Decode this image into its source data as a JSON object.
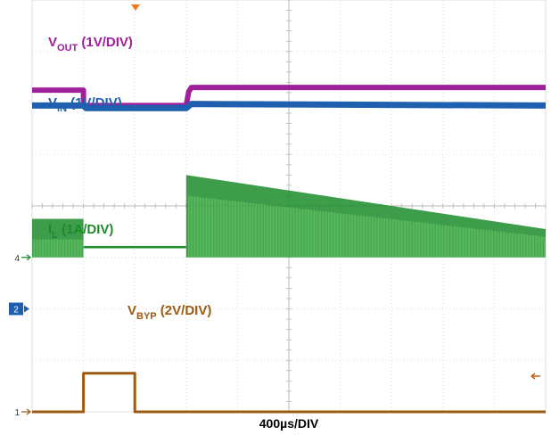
{
  "chart_data": {
    "type": "line",
    "title": "",
    "grid": true,
    "x_divisions": 10,
    "y_divisions": 8,
    "time_scale": "400µs/DIV",
    "trigger_position": "center-left (x≈1.0 div)",
    "channel_markers": [
      {
        "label": "4",
        "level_div": 3.0
      },
      {
        "label": "2",
        "level_div": 2.0
      },
      {
        "label": "1",
        "level_div": 0.0
      }
    ],
    "series": [
      {
        "name": "VOUT (1V/DIV)",
        "label": {
          "main": "V",
          "sub": "OUT",
          "rest": " (1V/DIV)"
        },
        "color": "#a0209c",
        "x": [
          0,
          1.0,
          1.0,
          3.0,
          3.05,
          3.1,
          10
        ],
        "y": [
          6.25,
          6.25,
          5.95,
          5.95,
          6.22,
          6.3,
          6.3
        ]
      },
      {
        "name": "VIN (1V/DIV)",
        "label": {
          "main": "V",
          "sub": "IN",
          "rest": " (1V/DIV)"
        },
        "color": "#1f5fb0",
        "x": [
          0,
          1.0,
          1.05,
          3.0,
          3.1,
          10
        ],
        "y": [
          5.95,
          5.95,
          5.9,
          5.9,
          5.98,
          5.95
        ]
      },
      {
        "name": "IL (1A/DIV)",
        "label": {
          "main": "I",
          "sub": "L",
          "rest": " (1A/DIV)"
        },
        "color": "#1c8c2a",
        "x": [
          0,
          1.0,
          1.0,
          3.0,
          3.0,
          10
        ],
        "y_high": [
          3.75,
          3.75,
          3.2,
          3.2,
          4.6,
          3.55
        ],
        "y_low": [
          3.0,
          3.0,
          3.2,
          3.2,
          3.0,
          3.0
        ]
      },
      {
        "name": "VBYP (2V/DIV)",
        "label": {
          "main": "V",
          "sub": "BYP",
          "rest": " (2V/DIV)"
        },
        "color": "#9c5a12",
        "x": [
          0,
          1.0,
          1.0,
          2.0,
          2.0,
          10
        ],
        "y": [
          0.0,
          0.0,
          0.75,
          0.75,
          0.0,
          0.0
        ]
      }
    ],
    "xlabel": "400µs/DIV"
  }
}
